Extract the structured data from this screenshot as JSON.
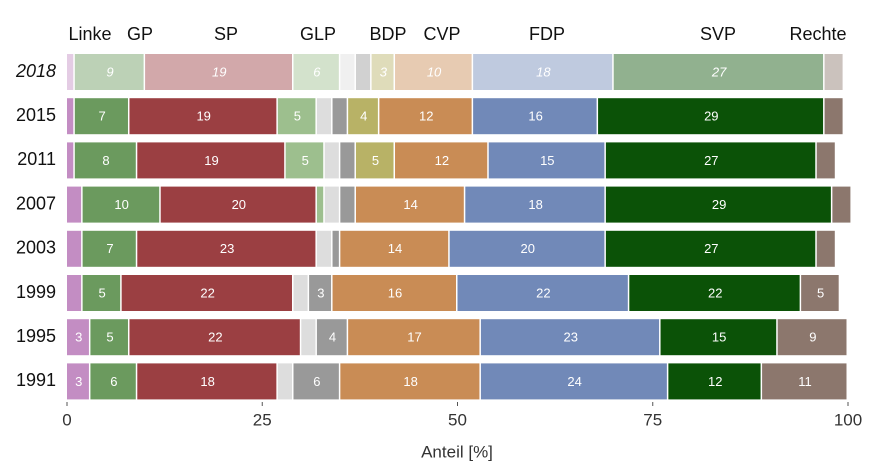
{
  "chart_data": {
    "type": "stacked-barh",
    "x_label": "Anteil [%]",
    "categories": [
      "2018",
      "2015",
      "2011",
      "2007",
      "2003",
      "1999",
      "1995",
      "1991"
    ],
    "series": [
      {
        "name": "Linke",
        "color": "#c38dc3",
        "values": [
          1,
          1,
          1,
          2,
          2,
          2,
          3,
          3
        ]
      },
      {
        "name": "GP",
        "color": "#6b9a5e",
        "values": [
          9,
          7,
          8,
          10,
          7,
          5,
          5,
          6
        ]
      },
      {
        "name": "SP",
        "color": "#9b3f42",
        "values": [
          19,
          19,
          19,
          20,
          23,
          22,
          22,
          18
        ]
      },
      {
        "name": "GLP",
        "color": "#9dbf8e",
        "values": [
          6,
          5,
          5,
          1,
          null,
          null,
          null,
          null
        ]
      },
      {
        "color": "#dddddd",
        "values": [
          2,
          2,
          2,
          2,
          2,
          2,
          2,
          2
        ]
      },
      {
        "color": "#999999",
        "values": [
          2,
          2,
          2,
          2,
          1,
          3,
          4,
          6
        ]
      },
      {
        "name": "BDP",
        "color": "#b8b266",
        "values": [
          3,
          4,
          5,
          null,
          null,
          null,
          null,
          null
        ]
      },
      {
        "name": "CVP",
        "color": "#c98c55",
        "values": [
          10,
          12,
          12,
          14,
          14,
          16,
          17,
          18
        ]
      },
      {
        "name": "FDP",
        "color": "#7189b8",
        "values": [
          18,
          16,
          15,
          18,
          20,
          22,
          23,
          24
        ]
      },
      {
        "name": "SVP",
        "color": "#0b5207",
        "values": [
          27,
          29,
          27,
          29,
          27,
          22,
          15,
          12
        ]
      },
      {
        "name": "Rechte",
        "color": "#8c776d",
        "values": [
          2.5,
          2.5,
          2.5,
          2.5,
          2.5,
          5,
          9,
          11
        ]
      }
    ],
    "xlim": [
      0,
      100
    ],
    "xticks": [
      0,
      25,
      50,
      75,
      100
    ]
  }
}
